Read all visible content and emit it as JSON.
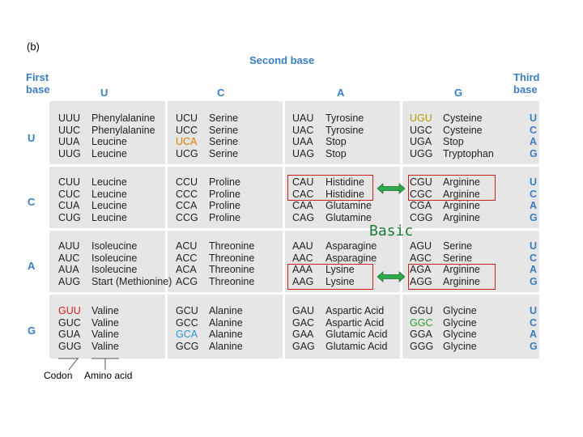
{
  "panel_label": "(b)",
  "second_base_title": "Second base",
  "first_base_title": [
    "First",
    "base"
  ],
  "third_base_title": [
    "Third",
    "base"
  ],
  "second_base_letters": [
    "U",
    "C",
    "A",
    "G"
  ],
  "first_base_letters": [
    "U",
    "C",
    "A",
    "G"
  ],
  "third_base_letters": [
    "U",
    "C",
    "A",
    "G"
  ],
  "cells": [
    [
      [
        [
          "UUU",
          "Phenylalanine"
        ],
        [
          "UUC",
          "Phenylalanine"
        ],
        [
          "UUA",
          "Leucine"
        ],
        [
          "UUG",
          "Leucine"
        ]
      ],
      [
        [
          "UCU",
          "Serine"
        ],
        [
          "UCC",
          "Serine"
        ],
        [
          "UCA",
          "Serine"
        ],
        [
          "UCG",
          "Serine"
        ]
      ],
      [
        [
          "UAU",
          "Tyrosine"
        ],
        [
          "UAC",
          "Tyrosine"
        ],
        [
          "UAA",
          "Stop"
        ],
        [
          "UAG",
          "Stop"
        ]
      ],
      [
        [
          "UGU",
          "Cysteine"
        ],
        [
          "UGC",
          "Cysteine"
        ],
        [
          "UGA",
          "Stop"
        ],
        [
          "UGG",
          "Tryptophan"
        ]
      ]
    ],
    [
      [
        [
          "CUU",
          "Leucine"
        ],
        [
          "CUC",
          "Leucine"
        ],
        [
          "CUA",
          "Leucine"
        ],
        [
          "CUG",
          "Leucine"
        ]
      ],
      [
        [
          "CCU",
          "Proline"
        ],
        [
          "CCC",
          "Proline"
        ],
        [
          "CCA",
          "Proline"
        ],
        [
          "CCG",
          "Proline"
        ]
      ],
      [
        [
          "CAU",
          "Histidine"
        ],
        [
          "CAC",
          "Histidine"
        ],
        [
          "CAA",
          "Glutamine"
        ],
        [
          "CAG",
          "Glutamine"
        ]
      ],
      [
        [
          "CGU",
          "Arginine"
        ],
        [
          "CGC",
          "Arginine"
        ],
        [
          "CGA",
          "Arginine"
        ],
        [
          "CGG",
          "Arginine"
        ]
      ]
    ],
    [
      [
        [
          "AUU",
          "Isoleucine"
        ],
        [
          "AUC",
          "Isoleucine"
        ],
        [
          "AUA",
          "Isoleucine"
        ],
        [
          "AUG",
          "Start (Methionine)"
        ]
      ],
      [
        [
          "ACU",
          "Threonine"
        ],
        [
          "ACC",
          "Threonine"
        ],
        [
          "ACA",
          "Threonine"
        ],
        [
          "ACG",
          "Threonine"
        ]
      ],
      [
        [
          "AAU",
          "Asparagine"
        ],
        [
          "AAC",
          "Asparagine"
        ],
        [
          "AAA",
          "Lysine"
        ],
        [
          "AAG",
          "Lysine"
        ]
      ],
      [
        [
          "AGU",
          "Serine"
        ],
        [
          "AGC",
          "Serine"
        ],
        [
          "AGA",
          "Arginine"
        ],
        [
          "AGG",
          "Arginine"
        ]
      ]
    ],
    [
      [
        [
          "GUU",
          "Valine"
        ],
        [
          "GUC",
          "Valine"
        ],
        [
          "GUA",
          "Valine"
        ],
        [
          "GUG",
          "Valine"
        ]
      ],
      [
        [
          "GCU",
          "Alanine"
        ],
        [
          "GCC",
          "Alanine"
        ],
        [
          "GCA",
          "Alanine"
        ],
        [
          "GCG",
          "Alanine"
        ]
      ],
      [
        [
          "GAU",
          "Aspartic Acid"
        ],
        [
          "GAC",
          "Aspartic Acid"
        ],
        [
          "GAA",
          "Glutamic Acid"
        ],
        [
          "GAG",
          "Glutamic Acid"
        ]
      ],
      [
        [
          "GGU",
          "Glycine"
        ],
        [
          "GGC",
          "Glycine"
        ],
        [
          "GGA",
          "Glycine"
        ],
        [
          "GGG",
          "Glycine"
        ]
      ]
    ]
  ],
  "highlighted_codons": {
    "UCA": "#e07b00",
    "UGU": "#b5a000",
    "GUU": "#d62020",
    "GCA": "#2a9ad6",
    "GGC": "#2f9a2f"
  },
  "annotation_text": "Basic",
  "annotation_color": "#1a7a3a",
  "box_color": "#cc2020",
  "legend": {
    "codon": "Codon",
    "amino_acid": "Amino acid"
  }
}
